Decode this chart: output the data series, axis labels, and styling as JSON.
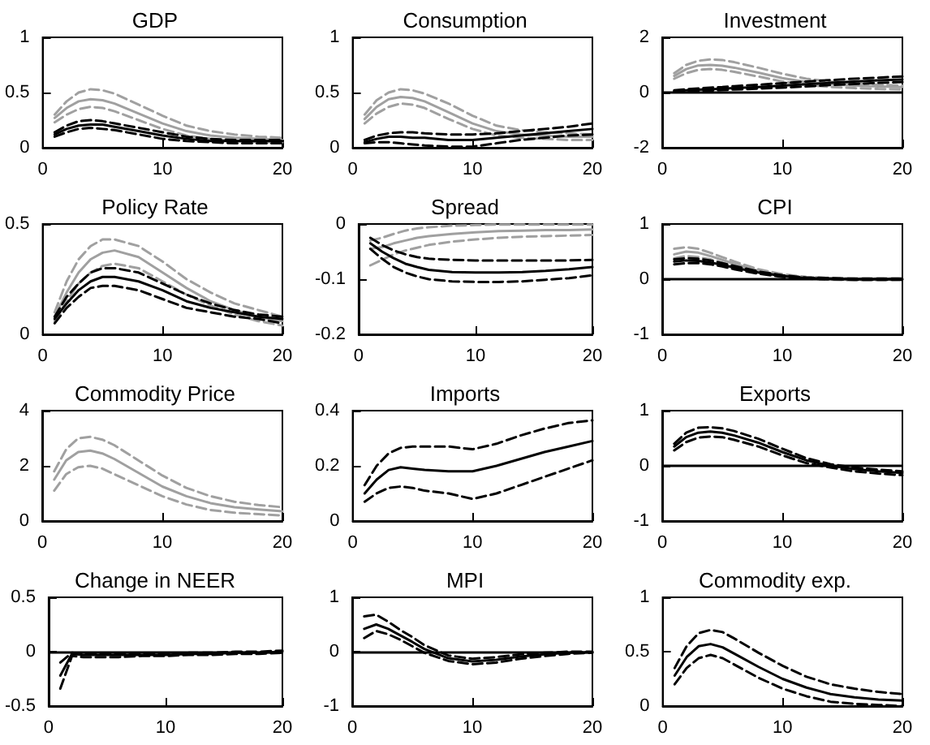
{
  "chart_data": [
    {
      "type": "line",
      "title": "GDP",
      "x": [
        1,
        2,
        3,
        4,
        5,
        6,
        8,
        10,
        12,
        14,
        16,
        18,
        20
      ],
      "xlim": [
        0,
        20
      ],
      "xticks": [
        0,
        10,
        20
      ],
      "ylim": [
        0,
        1
      ],
      "yticks": [
        0,
        0.5,
        1
      ],
      "grid": false,
      "marker": "none",
      "line_style": "solid",
      "series": [
        {
          "color": "#a0a0a0",
          "values": [
            0.27,
            0.36,
            0.42,
            0.44,
            0.43,
            0.4,
            0.31,
            0.22,
            0.15,
            0.11,
            0.09,
            0.08,
            0.07
          ]
        },
        {
          "color": "#a0a0a0",
          "line_style": "dashed",
          "values": [
            0.3,
            0.42,
            0.5,
            0.53,
            0.52,
            0.49,
            0.39,
            0.29,
            0.2,
            0.15,
            0.12,
            0.1,
            0.09
          ]
        },
        {
          "color": "#a0a0a0",
          "line_style": "dashed",
          "values": [
            0.23,
            0.3,
            0.35,
            0.37,
            0.36,
            0.33,
            0.25,
            0.17,
            0.11,
            0.08,
            0.06,
            0.05,
            0.05
          ]
        },
        {
          "color": "#000000",
          "values": [
            0.12,
            0.17,
            0.2,
            0.21,
            0.21,
            0.19,
            0.15,
            0.11,
            0.08,
            0.06,
            0.06,
            0.06,
            0.06
          ]
        },
        {
          "color": "#000000",
          "line_style": "dashed",
          "values": [
            0.14,
            0.2,
            0.24,
            0.25,
            0.24,
            0.22,
            0.18,
            0.14,
            0.1,
            0.08,
            0.07,
            0.07,
            0.07
          ]
        },
        {
          "color": "#000000",
          "line_style": "dashed",
          "values": [
            0.1,
            0.14,
            0.17,
            0.18,
            0.17,
            0.16,
            0.12,
            0.08,
            0.06,
            0.05,
            0.04,
            0.04,
            0.04
          ]
        }
      ]
    },
    {
      "type": "line",
      "title": "Consumption",
      "x": [
        1,
        2,
        3,
        4,
        5,
        6,
        8,
        10,
        12,
        14,
        16,
        18,
        20
      ],
      "xlim": [
        0,
        20
      ],
      "xticks": [
        0,
        10,
        20
      ],
      "ylim": [
        0,
        1
      ],
      "yticks": [
        0,
        0.5,
        1
      ],
      "grid": false,
      "marker": "none",
      "line_style": "solid",
      "series": [
        {
          "color": "#a0a0a0",
          "values": [
            0.26,
            0.37,
            0.44,
            0.46,
            0.45,
            0.42,
            0.32,
            0.22,
            0.15,
            0.12,
            0.11,
            0.1,
            0.1
          ]
        },
        {
          "color": "#a0a0a0",
          "line_style": "dashed",
          "values": [
            0.3,
            0.43,
            0.5,
            0.53,
            0.52,
            0.49,
            0.4,
            0.29,
            0.2,
            0.16,
            0.14,
            0.13,
            0.12
          ]
        },
        {
          "color": "#a0a0a0",
          "line_style": "dashed",
          "values": [
            0.22,
            0.31,
            0.37,
            0.4,
            0.39,
            0.36,
            0.26,
            0.17,
            0.11,
            0.09,
            0.08,
            0.07,
            0.07
          ]
        },
        {
          "color": "#000000",
          "values": [
            0.05,
            0.08,
            0.1,
            0.1,
            0.09,
            0.09,
            0.07,
            0.07,
            0.09,
            0.11,
            0.13,
            0.15,
            0.17
          ]
        },
        {
          "color": "#000000",
          "line_style": "dashed",
          "values": [
            0.07,
            0.11,
            0.13,
            0.14,
            0.14,
            0.13,
            0.12,
            0.12,
            0.13,
            0.15,
            0.17,
            0.19,
            0.22
          ]
        },
        {
          "color": "#000000",
          "line_style": "dashed",
          "values": [
            0.04,
            0.05,
            0.05,
            0.04,
            0.03,
            0.02,
            0.01,
            0.01,
            0.04,
            0.07,
            0.09,
            0.11,
            0.12
          ]
        }
      ]
    },
    {
      "type": "line",
      "title": "Investment",
      "x": [
        1,
        2,
        3,
        4,
        5,
        6,
        8,
        10,
        12,
        14,
        16,
        18,
        20
      ],
      "xlim": [
        0,
        20
      ],
      "xticks": [
        0,
        10,
        20
      ],
      "ylim": [
        -2,
        2
      ],
      "yticks": [
        -2,
        0,
        2
      ],
      "grid": false,
      "marker": "none",
      "line_style": "solid",
      "ref_lines": [
        {
          "axis": "y",
          "value": 0,
          "color": "#000000"
        }
      ],
      "series": [
        {
          "color": "#a0a0a0",
          "values": [
            0.6,
            0.85,
            0.98,
            1.0,
            0.97,
            0.9,
            0.72,
            0.52,
            0.38,
            0.3,
            0.25,
            0.22,
            0.2
          ]
        },
        {
          "color": "#a0a0a0",
          "line_style": "dashed",
          "values": [
            0.7,
            1.0,
            1.15,
            1.2,
            1.18,
            1.1,
            0.9,
            0.68,
            0.5,
            0.4,
            0.33,
            0.28,
            0.25
          ]
        },
        {
          "color": "#a0a0a0",
          "line_style": "dashed",
          "values": [
            0.5,
            0.7,
            0.82,
            0.85,
            0.82,
            0.75,
            0.58,
            0.4,
            0.28,
            0.2,
            0.16,
            0.13,
            0.12
          ]
        },
        {
          "color": "#000000",
          "values": [
            0.05,
            0.08,
            0.1,
            0.12,
            0.14,
            0.16,
            0.2,
            0.25,
            0.3,
            0.35,
            0.4,
            0.44,
            0.47
          ]
        },
        {
          "color": "#000000",
          "line_style": "dashed",
          "values": [
            0.08,
            0.12,
            0.15,
            0.18,
            0.2,
            0.23,
            0.28,
            0.34,
            0.4,
            0.45,
            0.5,
            0.54,
            0.58
          ]
        },
        {
          "color": "#000000",
          "line_style": "dashed",
          "values": [
            0.02,
            0.04,
            0.06,
            0.07,
            0.09,
            0.11,
            0.14,
            0.18,
            0.22,
            0.27,
            0.31,
            0.35,
            0.38
          ]
        }
      ]
    },
    {
      "type": "line",
      "title": "Policy Rate",
      "x": [
        1,
        2,
        3,
        4,
        5,
        6,
        8,
        10,
        12,
        14,
        16,
        18,
        20
      ],
      "xlim": [
        0,
        20
      ],
      "xticks": [
        0,
        10,
        20
      ],
      "ylim": [
        0,
        0.5
      ],
      "yticks": [
        0,
        0.5
      ],
      "grid": false,
      "marker": "none",
      "line_style": "solid",
      "series": [
        {
          "color": "#a0a0a0",
          "values": [
            0.08,
            0.19,
            0.28,
            0.34,
            0.37,
            0.38,
            0.35,
            0.28,
            0.21,
            0.15,
            0.11,
            0.08,
            0.06
          ]
        },
        {
          "color": "#a0a0a0",
          "line_style": "dashed",
          "values": [
            0.1,
            0.24,
            0.34,
            0.4,
            0.43,
            0.43,
            0.4,
            0.33,
            0.25,
            0.19,
            0.14,
            0.11,
            0.08
          ]
        },
        {
          "color": "#a0a0a0",
          "line_style": "dashed",
          "values": [
            0.06,
            0.15,
            0.23,
            0.28,
            0.31,
            0.32,
            0.3,
            0.24,
            0.18,
            0.13,
            0.09,
            0.06,
            0.04
          ]
        },
        {
          "color": "#000000",
          "values": [
            0.07,
            0.14,
            0.2,
            0.24,
            0.26,
            0.26,
            0.24,
            0.2,
            0.15,
            0.12,
            0.1,
            0.08,
            0.07
          ]
        },
        {
          "color": "#000000",
          "line_style": "dashed",
          "values": [
            0.08,
            0.17,
            0.23,
            0.28,
            0.3,
            0.3,
            0.28,
            0.23,
            0.18,
            0.14,
            0.11,
            0.09,
            0.08
          ]
        },
        {
          "color": "#000000",
          "line_style": "dashed",
          "values": [
            0.05,
            0.12,
            0.17,
            0.21,
            0.22,
            0.22,
            0.2,
            0.16,
            0.12,
            0.1,
            0.08,
            0.07,
            0.05
          ]
        }
      ]
    },
    {
      "type": "line",
      "title": "Spread",
      "x": [
        1,
        2,
        3,
        4,
        5,
        6,
        8,
        10,
        12,
        14,
        16,
        18,
        20
      ],
      "xlim": [
        0,
        20
      ],
      "xticks": [
        0,
        10,
        20
      ],
      "ylim": [
        -0.2,
        0
      ],
      "yticks": [
        -0.2,
        -0.1,
        0
      ],
      "grid": false,
      "marker": "none",
      "line_style": "solid",
      "series": [
        {
          "color": "#a0a0a0",
          "values": [
            -0.045,
            -0.042,
            -0.035,
            -0.03,
            -0.025,
            -0.022,
            -0.018,
            -0.015,
            -0.013,
            -0.012,
            -0.011,
            -0.011,
            -0.01
          ]
        },
        {
          "color": "#a0a0a0",
          "line_style": "dashed",
          "values": [
            -0.03,
            -0.025,
            -0.018,
            -0.012,
            -0.008,
            -0.006,
            -0.003,
            -0.002,
            -0.001,
            -0.001,
            -0.001,
            -0.001,
            -0.001
          ]
        },
        {
          "color": "#a0a0a0",
          "line_style": "dashed",
          "values": [
            -0.075,
            -0.065,
            -0.055,
            -0.048,
            -0.043,
            -0.038,
            -0.032,
            -0.028,
            -0.025,
            -0.023,
            -0.022,
            -0.021,
            -0.02
          ]
        },
        {
          "color": "#000000",
          "values": [
            -0.035,
            -0.05,
            -0.062,
            -0.072,
            -0.078,
            -0.083,
            -0.087,
            -0.088,
            -0.088,
            -0.087,
            -0.085,
            -0.082,
            -0.078
          ]
        },
        {
          "color": "#000000",
          "line_style": "dashed",
          "values": [
            -0.025,
            -0.038,
            -0.048,
            -0.055,
            -0.06,
            -0.063,
            -0.065,
            -0.066,
            -0.066,
            -0.066,
            -0.066,
            -0.066,
            -0.065
          ]
        },
        {
          "color": "#000000",
          "line_style": "dashed",
          "values": [
            -0.045,
            -0.063,
            -0.078,
            -0.088,
            -0.095,
            -0.1,
            -0.104,
            -0.105,
            -0.105,
            -0.104,
            -0.101,
            -0.098,
            -0.093
          ]
        }
      ]
    },
    {
      "type": "line",
      "title": "CPI",
      "x": [
        1,
        2,
        3,
        4,
        5,
        6,
        8,
        10,
        12,
        14,
        16,
        18,
        20
      ],
      "xlim": [
        0,
        20
      ],
      "xticks": [
        0,
        10,
        20
      ],
      "ylim": [
        -1,
        1
      ],
      "yticks": [
        -1,
        0,
        1
      ],
      "grid": false,
      "marker": "none",
      "line_style": "solid",
      "ref_lines": [
        {
          "axis": "y",
          "value": 0,
          "color": "#000000"
        }
      ],
      "series": [
        {
          "color": "#a0a0a0",
          "values": [
            0.45,
            0.5,
            0.48,
            0.42,
            0.35,
            0.28,
            0.15,
            0.07,
            0.03,
            0.01,
            0,
            0,
            0
          ]
        },
        {
          "color": "#a0a0a0",
          "line_style": "dashed",
          "values": [
            0.55,
            0.58,
            0.55,
            0.48,
            0.4,
            0.32,
            0.18,
            0.09,
            0.04,
            0.02,
            0.01,
            0.01,
            0.01
          ]
        },
        {
          "color": "#a0a0a0",
          "line_style": "dashed",
          "values": [
            0.38,
            0.42,
            0.4,
            0.36,
            0.3,
            0.24,
            0.12,
            0.05,
            0.01,
            -0.01,
            -0.02,
            -0.02,
            -0.01
          ]
        },
        {
          "color": "#000000",
          "values": [
            0.32,
            0.34,
            0.33,
            0.3,
            0.26,
            0.21,
            0.12,
            0.06,
            0.02,
            0.01,
            0,
            0,
            0
          ]
        },
        {
          "color": "#000000",
          "line_style": "dashed",
          "values": [
            0.36,
            0.38,
            0.37,
            0.34,
            0.29,
            0.24,
            0.14,
            0.07,
            0.03,
            0.02,
            0.01,
            0.01,
            0.01
          ]
        },
        {
          "color": "#000000",
          "line_style": "dashed",
          "values": [
            0.27,
            0.29,
            0.29,
            0.27,
            0.23,
            0.18,
            0.1,
            0.04,
            0.01,
            0,
            -0.01,
            -0.01,
            -0.01
          ]
        }
      ]
    },
    {
      "type": "line",
      "title": "Commodity Price",
      "x": [
        1,
        2,
        3,
        4,
        5,
        6,
        8,
        10,
        12,
        14,
        16,
        18,
        20
      ],
      "xlim": [
        0,
        20
      ],
      "xticks": [
        0,
        10,
        20
      ],
      "ylim": [
        0,
        4
      ],
      "yticks": [
        0,
        2,
        4
      ],
      "grid": false,
      "marker": "none",
      "line_style": "solid",
      "series": [
        {
          "color": "#a0a0a0",
          "values": [
            1.5,
            2.2,
            2.5,
            2.55,
            2.45,
            2.25,
            1.75,
            1.25,
            0.9,
            0.65,
            0.5,
            0.42,
            0.35
          ]
        },
        {
          "color": "#a0a0a0",
          "line_style": "dashed",
          "values": [
            1.8,
            2.6,
            3.0,
            3.05,
            2.95,
            2.75,
            2.2,
            1.65,
            1.2,
            0.9,
            0.7,
            0.58,
            0.5
          ]
        },
        {
          "color": "#a0a0a0",
          "line_style": "dashed",
          "values": [
            1.1,
            1.7,
            1.95,
            2.0,
            1.9,
            1.7,
            1.3,
            0.9,
            0.6,
            0.4,
            0.3,
            0.25,
            0.2
          ]
        }
      ]
    },
    {
      "type": "line",
      "title": "Imports",
      "x": [
        1,
        2,
        3,
        4,
        5,
        6,
        8,
        10,
        12,
        14,
        16,
        18,
        20
      ],
      "xlim": [
        0,
        20
      ],
      "xticks": [
        0,
        10,
        20
      ],
      "ylim": [
        0,
        0.4
      ],
      "yticks": [
        0,
        0.2,
        0.4
      ],
      "grid": false,
      "marker": "none",
      "line_style": "solid",
      "series": [
        {
          "color": "#000000",
          "values": [
            0.1,
            0.15,
            0.185,
            0.195,
            0.19,
            0.185,
            0.18,
            0.18,
            0.2,
            0.225,
            0.25,
            0.27,
            0.29
          ]
        },
        {
          "color": "#000000",
          "line_style": "dashed",
          "values": [
            0.13,
            0.2,
            0.245,
            0.265,
            0.27,
            0.27,
            0.27,
            0.26,
            0.28,
            0.31,
            0.335,
            0.355,
            0.365
          ]
        },
        {
          "color": "#000000",
          "line_style": "dashed",
          "values": [
            0.07,
            0.1,
            0.12,
            0.125,
            0.12,
            0.11,
            0.1,
            0.08,
            0.1,
            0.13,
            0.16,
            0.19,
            0.22
          ]
        }
      ]
    },
    {
      "type": "line",
      "title": "Exports",
      "x": [
        1,
        2,
        3,
        4,
        5,
        6,
        8,
        10,
        12,
        14,
        16,
        18,
        20
      ],
      "xlim": [
        0,
        20
      ],
      "xticks": [
        0,
        10,
        20
      ],
      "ylim": [
        -1,
        1
      ],
      "yticks": [
        -1,
        0,
        1
      ],
      "grid": false,
      "marker": "none",
      "line_style": "solid",
      "ref_lines": [
        {
          "axis": "y",
          "value": 0,
          "color": "#000000"
        }
      ],
      "series": [
        {
          "color": "#000000",
          "values": [
            0.35,
            0.52,
            0.6,
            0.62,
            0.6,
            0.55,
            0.42,
            0.25,
            0.1,
            0,
            -0.06,
            -0.1,
            -0.13
          ]
        },
        {
          "color": "#000000",
          "line_style": "dashed",
          "values": [
            0.4,
            0.6,
            0.69,
            0.7,
            0.68,
            0.63,
            0.49,
            0.31,
            0.14,
            0.03,
            -0.03,
            -0.07,
            -0.1
          ]
        },
        {
          "color": "#000000",
          "line_style": "dashed",
          "values": [
            0.28,
            0.43,
            0.51,
            0.53,
            0.52,
            0.47,
            0.35,
            0.19,
            0.05,
            -0.03,
            -0.1,
            -0.14,
            -0.17
          ]
        }
      ]
    },
    {
      "type": "line",
      "title": "Change in NEER",
      "x": [
        1,
        2,
        3,
        4,
        5,
        6,
        8,
        10,
        12,
        14,
        16,
        18,
        20
      ],
      "xlim": [
        0,
        20
      ],
      "xticks": [
        0,
        10,
        20
      ],
      "ylim": [
        -0.5,
        0.5
      ],
      "yticks": [
        -0.5,
        0,
        0.5
      ],
      "grid": false,
      "marker": "none",
      "line_style": "solid",
      "ref_lines": [
        {
          "axis": "y",
          "value": 0,
          "color": "#000000"
        }
      ],
      "series": [
        {
          "color": "#000000",
          "values": [
            -0.22,
            -0.02,
            -0.03,
            -0.03,
            -0.03,
            -0.03,
            -0.03,
            -0.03,
            -0.02,
            -0.02,
            -0.01,
            -0.01,
            0
          ]
        },
        {
          "color": "#000000",
          "line_style": "dashed",
          "values": [
            -0.1,
            -0.01,
            -0.02,
            -0.02,
            -0.02,
            -0.02,
            -0.02,
            -0.02,
            -0.01,
            -0.01,
            0,
            0,
            0.01
          ]
        },
        {
          "color": "#000000",
          "line_style": "dashed",
          "values": [
            -0.34,
            -0.04,
            -0.05,
            -0.05,
            -0.05,
            -0.05,
            -0.04,
            -0.04,
            -0.03,
            -0.03,
            -0.02,
            -0.02,
            -0.01
          ]
        }
      ]
    },
    {
      "type": "line",
      "title": "MPI",
      "x": [
        1,
        2,
        3,
        4,
        5,
        6,
        8,
        10,
        12,
        14,
        16,
        18,
        20
      ],
      "xlim": [
        0,
        20
      ],
      "xticks": [
        0,
        10,
        20
      ],
      "ylim": [
        -1,
        1
      ],
      "yticks": [
        -1,
        0,
        1
      ],
      "grid": false,
      "marker": "none",
      "line_style": "solid",
      "ref_lines": [
        {
          "axis": "y",
          "value": 0,
          "color": "#000000"
        }
      ],
      "series": [
        {
          "color": "#000000",
          "values": [
            0.42,
            0.5,
            0.42,
            0.3,
            0.18,
            0.05,
            -0.12,
            -0.18,
            -0.15,
            -0.09,
            -0.05,
            -0.02,
            -0.01
          ]
        },
        {
          "color": "#000000",
          "line_style": "dashed",
          "values": [
            0.65,
            0.68,
            0.55,
            0.4,
            0.27,
            0.12,
            -0.07,
            -0.13,
            -0.1,
            -0.05,
            -0.02,
            0,
            0
          ]
        },
        {
          "color": "#000000",
          "line_style": "dashed",
          "values": [
            0.25,
            0.38,
            0.32,
            0.22,
            0.1,
            -0.02,
            -0.17,
            -0.23,
            -0.2,
            -0.13,
            -0.08,
            -0.04,
            -0.02
          ]
        }
      ]
    },
    {
      "type": "line",
      "title": "Commodity exp.",
      "x": [
        1,
        2,
        3,
        4,
        5,
        6,
        8,
        10,
        12,
        14,
        16,
        18,
        20
      ],
      "xlim": [
        0,
        20
      ],
      "xticks": [
        0,
        10,
        20
      ],
      "ylim": [
        0,
        1
      ],
      "yticks": [
        0,
        0.5,
        1
      ],
      "grid": false,
      "marker": "none",
      "line_style": "solid",
      "series": [
        {
          "color": "#000000",
          "values": [
            0.28,
            0.45,
            0.55,
            0.57,
            0.54,
            0.48,
            0.36,
            0.25,
            0.17,
            0.11,
            0.08,
            0.06,
            0.05
          ]
        },
        {
          "color": "#000000",
          "line_style": "dashed",
          "values": [
            0.35,
            0.55,
            0.67,
            0.7,
            0.68,
            0.62,
            0.49,
            0.37,
            0.27,
            0.2,
            0.16,
            0.13,
            0.11
          ]
        },
        {
          "color": "#000000",
          "line_style": "dashed",
          "values": [
            0.2,
            0.35,
            0.44,
            0.47,
            0.44,
            0.38,
            0.26,
            0.16,
            0.09,
            0.04,
            0.02,
            0.01,
            0
          ]
        }
      ]
    }
  ]
}
